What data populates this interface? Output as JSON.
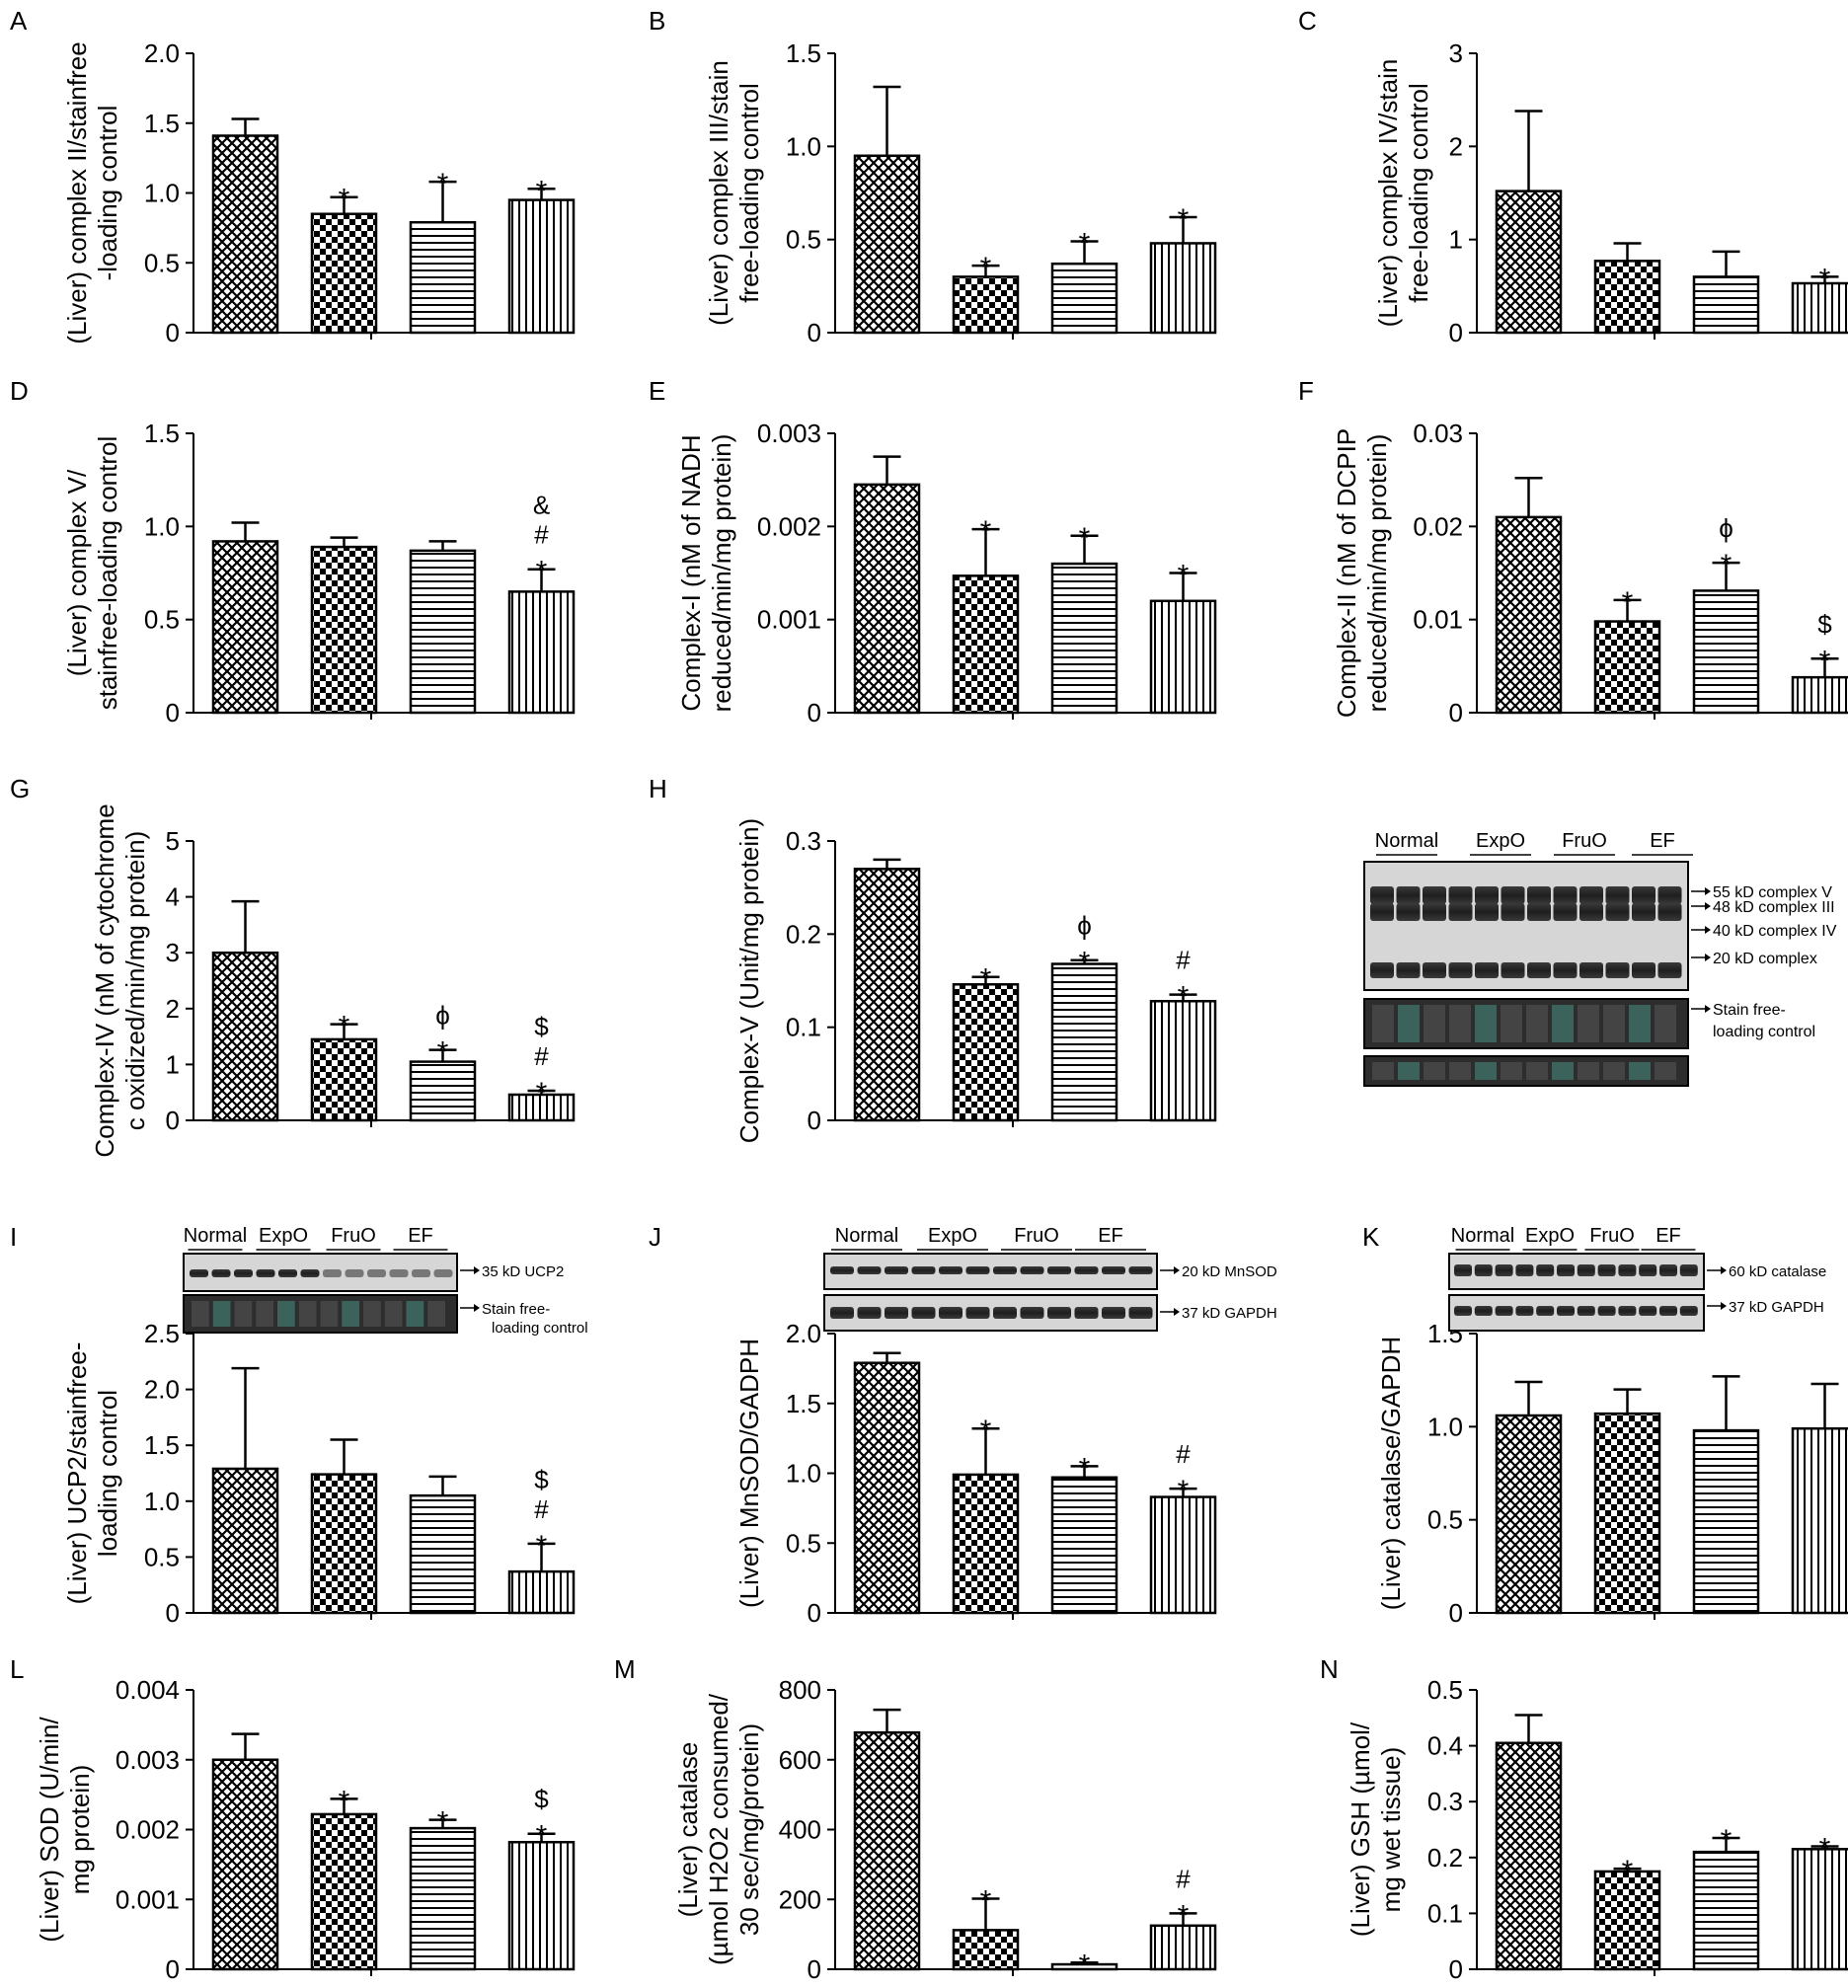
{
  "patterns": {
    "Normal": "cross",
    "ExpO": "check",
    "FruO": "horiz",
    "EF": "vert"
  },
  "blots": {
    "H": {
      "lanes": [
        "Normal",
        "ExpO",
        "FruO",
        "EF"
      ],
      "labels": [
        "55 kD complex V",
        "48 kD complex III",
        "40 kD complex IV",
        "20 kD complex",
        "Stain free-",
        "loading control"
      ]
    },
    "I": {
      "lanes": [
        "Normal",
        "ExpO",
        "FruO",
        "EF"
      ],
      "labels": [
        "35 kD UCP2",
        "Stain free-",
        "loading control"
      ]
    },
    "J": {
      "lanes": [
        "Normal",
        "ExpO",
        "FruO",
        "EF"
      ],
      "labels": [
        "20 kD MnSOD",
        "37 kD GAPDH"
      ]
    },
    "K": {
      "lanes": [
        "Normal",
        "ExpO",
        "FruO",
        "EF"
      ],
      "labels": [
        "60 kD catalase",
        "37 kD GAPDH"
      ]
    }
  },
  "chart_data": [
    {
      "panel": "A",
      "type": "bar",
      "categories": [
        "Normal",
        "ExpO",
        "FruO",
        "EF"
      ],
      "values": [
        1.41,
        0.85,
        0.79,
        0.95
      ],
      "errors": [
        0.12,
        0.12,
        0.29,
        0.08
      ],
      "annotations": [
        [],
        [
          "*"
        ],
        [
          "*"
        ],
        [
          "*"
        ]
      ],
      "ylabel": [
        "(Liver) complex II/stainfree",
        "-loading control"
      ],
      "ylim": [
        0,
        2.0
      ],
      "yticks": [
        0,
        0.5,
        1.0,
        1.5,
        2.0
      ],
      "ytick_labels": [
        "0",
        "0.5",
        "1.0",
        "1.5",
        "2.0"
      ]
    },
    {
      "panel": "B",
      "type": "bar",
      "categories": [
        "Normal",
        "ExpO",
        "FruO",
        "EF"
      ],
      "values": [
        0.95,
        0.3,
        0.37,
        0.48
      ],
      "errors": [
        0.37,
        0.06,
        0.12,
        0.14
      ],
      "annotations": [
        [],
        [
          "*"
        ],
        [
          "*"
        ],
        [
          "*"
        ]
      ],
      "ylabel": [
        "(Liver) complex III/stain",
        "free-loading control"
      ],
      "ylim": [
        0,
        1.5
      ],
      "yticks": [
        0,
        0.5,
        1.0,
        1.5
      ],
      "ytick_labels": [
        "0",
        "0.5",
        "1.0",
        "1.5"
      ]
    },
    {
      "panel": "C",
      "type": "bar",
      "categories": [
        "Normal",
        "ExpO",
        "FruO",
        "EF"
      ],
      "values": [
        1.52,
        0.77,
        0.6,
        0.53
      ],
      "errors": [
        0.86,
        0.19,
        0.27,
        0.07
      ],
      "annotations": [
        [],
        [],
        [],
        [
          "*"
        ]
      ],
      "ylabel": [
        "(Liver) complex IV/stain",
        "free-loading control"
      ],
      "ylim": [
        0,
        3
      ],
      "yticks": [
        0,
        1,
        2,
        3
      ],
      "ytick_labels": [
        "0",
        "1",
        "2",
        "3"
      ]
    },
    {
      "panel": "D",
      "type": "bar",
      "categories": [
        "Normal",
        "ExpO",
        "FruO",
        "EF"
      ],
      "values": [
        0.92,
        0.89,
        0.87,
        0.65
      ],
      "errors": [
        0.1,
        0.05,
        0.05,
        0.12
      ],
      "annotations": [
        [],
        [],
        [],
        [
          "&",
          "#",
          "*"
        ]
      ],
      "ylabel": [
        "(Liver) complex V/",
        "stainfree-loading control"
      ],
      "ylim": [
        0,
        1.5
      ],
      "yticks": [
        0,
        0.5,
        1.0,
        1.5
      ],
      "ytick_labels": [
        "0",
        "0.5",
        "1.0",
        "1.5"
      ]
    },
    {
      "panel": "E",
      "type": "bar",
      "categories": [
        "Normal",
        "ExpO",
        "FruO",
        "EF"
      ],
      "values": [
        0.00245,
        0.00147,
        0.0016,
        0.0012
      ],
      "errors": [
        0.0003,
        0.0005,
        0.0003,
        0.0003
      ],
      "annotations": [
        [],
        [
          "*"
        ],
        [
          "*"
        ],
        [
          "*"
        ]
      ],
      "ylabel": [
        "Complex-I (nM of NADH",
        "reduced/min/mg protein)"
      ],
      "ylim": [
        0,
        0.003
      ],
      "yticks": [
        0,
        0.001,
        0.002,
        0.003
      ],
      "ytick_labels": [
        "0",
        "0.001",
        "0.002",
        "0.003"
      ]
    },
    {
      "panel": "F",
      "type": "bar",
      "categories": [
        "Normal",
        "ExpO",
        "FruO",
        "EF"
      ],
      "values": [
        0.021,
        0.0098,
        0.0131,
        0.0038
      ],
      "errors": [
        0.0042,
        0.0023,
        0.003,
        0.002
      ],
      "annotations": [
        [],
        [
          "*"
        ],
        [
          "ϕ",
          "*"
        ],
        [
          "$",
          "*"
        ]
      ],
      "ylabel": [
        "Complex-II (nM of DCPIP",
        "reduced/min/mg protein)"
      ],
      "ylim": [
        0,
        0.03
      ],
      "yticks": [
        0,
        0.01,
        0.02,
        0.03
      ],
      "ytick_labels": [
        "0",
        "0.01",
        "0.02",
        "0.03"
      ]
    },
    {
      "panel": "G",
      "type": "bar",
      "categories": [
        "Normal",
        "ExpO",
        "FruO",
        "EF"
      ],
      "values": [
        3.0,
        1.45,
        1.05,
        0.46
      ],
      "errors": [
        0.92,
        0.27,
        0.21,
        0.07
      ],
      "annotations": [
        [],
        [
          "*"
        ],
        [
          "ϕ",
          "*"
        ],
        [
          "$",
          "#",
          "*"
        ]
      ],
      "ylabel": [
        "Complex-IV (nM of cytochrome",
        "c oxidized/min/mg protein)"
      ],
      "ylim": [
        0,
        5
      ],
      "yticks": [
        0,
        1,
        2,
        3,
        4,
        5
      ],
      "ytick_labels": [
        "0",
        "1",
        "2",
        "3",
        "4",
        "5"
      ]
    },
    {
      "panel": "H",
      "type": "bar",
      "categories": [
        "Normal",
        "ExpO",
        "FruO",
        "EF"
      ],
      "values": [
        0.27,
        0.146,
        0.168,
        0.128
      ],
      "errors": [
        0.01,
        0.008,
        0.004,
        0.007
      ],
      "annotations": [
        [],
        [
          "*"
        ],
        [
          "ϕ",
          "*"
        ],
        [
          "#",
          "*"
        ]
      ],
      "ylabel": [
        "Complex-V (Unit/mg protein)"
      ],
      "ylim": [
        0,
        0.3
      ],
      "yticks": [
        0,
        0.1,
        0.2,
        0.3
      ],
      "ytick_labels": [
        "0",
        "0.1",
        "0.2",
        "0.3"
      ]
    },
    {
      "panel": "I",
      "type": "bar",
      "categories": [
        "Normal",
        "ExpO",
        "FruO",
        "EF"
      ],
      "values": [
        1.29,
        1.24,
        1.05,
        0.37
      ],
      "errors": [
        0.9,
        0.31,
        0.17,
        0.25
      ],
      "annotations": [
        [],
        [],
        [],
        [
          "$",
          "#",
          "*"
        ]
      ],
      "ylabel": [
        "(Liver) UCP2/stainfree-",
        "loading control"
      ],
      "ylim": [
        0,
        2.5
      ],
      "yticks": [
        0,
        0.5,
        1.0,
        1.5,
        2.0,
        2.5
      ],
      "ytick_labels": [
        "0",
        "0.5",
        "1.0",
        "1.5",
        "2.0",
        "2.5"
      ]
    },
    {
      "panel": "J",
      "type": "bar",
      "categories": [
        "Normal",
        "ExpO",
        "FruO",
        "EF"
      ],
      "values": [
        1.79,
        0.99,
        0.97,
        0.83
      ],
      "errors": [
        0.07,
        0.33,
        0.08,
        0.06
      ],
      "annotations": [
        [],
        [
          "*"
        ],
        [
          "*"
        ],
        [
          "#",
          "*"
        ]
      ],
      "ylabel": [
        "(Liver) MnSOD/GADPH"
      ],
      "ylim": [
        0,
        2.0
      ],
      "yticks": [
        0,
        0.5,
        1.0,
        1.5,
        2.0
      ],
      "ytick_labels": [
        "0",
        "0.5",
        "1.0",
        "1.5",
        "2.0"
      ]
    },
    {
      "panel": "K",
      "type": "bar",
      "categories": [
        "Normal",
        "ExpO",
        "FruO",
        "EF"
      ],
      "values": [
        1.06,
        1.07,
        0.98,
        0.99
      ],
      "errors": [
        0.18,
        0.13,
        0.29,
        0.24
      ],
      "annotations": [
        [],
        [],
        [],
        []
      ],
      "ylabel": [
        "(Liver) catalase/GAPDH"
      ],
      "ylim": [
        0,
        1.5
      ],
      "yticks": [
        0,
        0.5,
        1.0,
        1.5
      ],
      "ytick_labels": [
        "0",
        "0.5",
        "1.0",
        "1.5"
      ]
    },
    {
      "panel": "L",
      "type": "bar",
      "categories": [
        "Normal",
        "ExpO",
        "FruO",
        "EF"
      ],
      "values": [
        0.003,
        0.00222,
        0.00202,
        0.00182
      ],
      "errors": [
        0.00037,
        0.00022,
        0.00012,
        0.00012
      ],
      "annotations": [
        [],
        [
          "*"
        ],
        [
          "*"
        ],
        [
          "$",
          "*"
        ]
      ],
      "ylabel": [
        "(Liver) SOD (U/min/",
        "mg protein)"
      ],
      "ylim": [
        0,
        0.004
      ],
      "yticks": [
        0,
        0.001,
        0.002,
        0.003,
        0.004
      ],
      "ytick_labels": [
        "0",
        "0.001",
        "0.002",
        "0.003",
        "0.004"
      ]
    },
    {
      "panel": "M",
      "type": "bar",
      "categories": [
        "Normal",
        "ExpO",
        "FruO",
        "EF"
      ],
      "values": [
        678,
        112,
        14,
        125
      ],
      "errors": [
        65,
        90,
        5,
        35
      ],
      "annotations": [
        [],
        [
          "*"
        ],
        [
          "*"
        ],
        [
          "#",
          "*"
        ]
      ],
      "ylabel": [
        "(Liver) catalase",
        "(µmol H2O2 consumed/",
        "30 sec/mg/protein)"
      ],
      "ylim": [
        0,
        800
      ],
      "yticks": [
        0,
        200,
        400,
        600,
        800
      ],
      "ytick_labels": [
        "0",
        "200",
        "400",
        "600",
        "800"
      ]
    },
    {
      "panel": "N",
      "type": "bar",
      "categories": [
        "Normal",
        "ExpO",
        "FruO",
        "EF"
      ],
      "values": [
        0.405,
        0.175,
        0.21,
        0.215
      ],
      "errors": [
        0.05,
        0.005,
        0.025,
        0.005
      ],
      "annotations": [
        [],
        [
          "*"
        ],
        [
          "*"
        ],
        [
          "*"
        ]
      ],
      "ylabel": [
        "(Liver) GSH (µmol/",
        "mg wet tissue)"
      ],
      "ylim": [
        0,
        0.5
      ],
      "yticks": [
        0,
        0.1,
        0.2,
        0.3,
        0.4,
        0.5
      ],
      "ytick_labels": [
        "0",
        "0.1",
        "0.2",
        "0.3",
        "0.4",
        "0.5"
      ]
    }
  ]
}
